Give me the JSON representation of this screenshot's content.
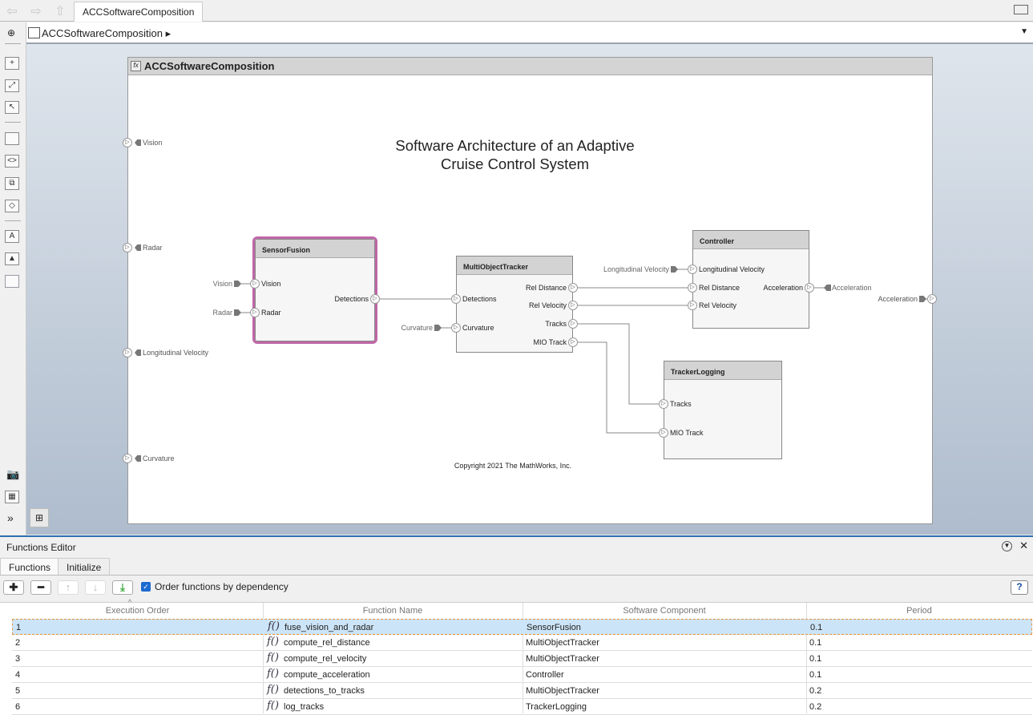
{
  "window": {
    "tab": "ACCSoftwareComposition",
    "breadcrumb": "ACCSoftwareComposition"
  },
  "diagram": {
    "header": "ACCSoftwareComposition",
    "title_line1": "Software Architecture of an Adaptive",
    "title_line2": "Cruise Control System",
    "copyright": "Copyright 2021 The MathWorks, Inc.",
    "root_inports": [
      "Vision",
      "Radar",
      "Longitudinal Velocity",
      "Curvature"
    ],
    "root_outport": "Acceleration",
    "selection_color": "#c067a8",
    "blocks": {
      "sensor_fusion": {
        "name": "SensorFusion",
        "inputs": [
          "Vision",
          "Radar"
        ],
        "outputs": [
          "Detections"
        ],
        "in_signals": [
          "Vision",
          "Radar"
        ]
      },
      "tracker": {
        "name": "MultiObjectTracker",
        "inputs": [
          "Detections",
          "Curvature"
        ],
        "outputs": [
          "Rel Distance",
          "Rel Velocity",
          "Tracks",
          "MIO Track"
        ],
        "in_signals": [
          "Curvature"
        ]
      },
      "controller": {
        "name": "Controller",
        "inputs": [
          "Longitudinal Velocity",
          "Rel Distance",
          "Rel Velocity"
        ],
        "outputs": [
          "Acceleration"
        ],
        "in_signals": [
          "Longitudinal Velocity"
        ],
        "out_signals": [
          "Acceleration"
        ]
      },
      "logging": {
        "name": "TrackerLogging",
        "inputs": [
          "Tracks",
          "MIO Track"
        ]
      }
    }
  },
  "functions_editor": {
    "title": "Functions Editor",
    "tabs": [
      "Functions",
      "Initialize"
    ],
    "order_by_dependency_label": "Order functions by dependency",
    "order_by_dependency": true,
    "help": "?",
    "columns": [
      "Execution Order",
      "Function Name",
      "Software Component",
      "Period"
    ],
    "rows": [
      {
        "order": "1",
        "name": "fuse_vision_and_radar",
        "component": "SensorFusion",
        "period": "0.1"
      },
      {
        "order": "2",
        "name": "compute_rel_distance",
        "component": "MultiObjectTracker",
        "period": "0.1"
      },
      {
        "order": "3",
        "name": "compute_rel_velocity",
        "component": "MultiObjectTracker",
        "period": "0.1"
      },
      {
        "order": "4",
        "name": "compute_acceleration",
        "component": "Controller",
        "period": "0.1"
      },
      {
        "order": "5",
        "name": "detections_to_tracks",
        "component": "MultiObjectTracker",
        "period": "0.2"
      },
      {
        "order": "6",
        "name": "log_tracks",
        "component": "TrackerLogging",
        "period": "0.2"
      }
    ],
    "fx_glyph": "f()"
  }
}
